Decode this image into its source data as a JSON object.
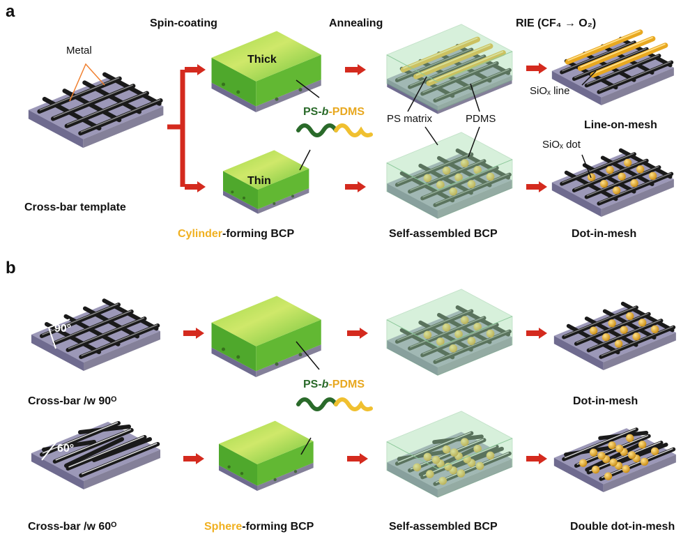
{
  "panel_a": {
    "label": "a",
    "steps": [
      "Spin-coating",
      "Annealing",
      "RIE (CF₄ → O₂)"
    ],
    "annotations": {
      "metal": "Metal",
      "thick": "Thick",
      "thin": "Thin",
      "polymer": [
        "PS-",
        "b",
        "-PDMS"
      ],
      "ps_matrix": "PS matrix",
      "pdms": "PDMS",
      "siox_line": "SiOₓ line",
      "siox_dot": "SiOₓ dot"
    },
    "captions": {
      "template": "Cross-bar template",
      "bcp": [
        "Cylinder",
        "-forming BCP"
      ],
      "self_assembled": "Self-assembled BCP",
      "line_on_mesh": "Line-on-mesh",
      "dot_in_mesh": "Dot-in-mesh"
    }
  },
  "panel_b": {
    "label": "b",
    "annotations": {
      "angle_90": "90°",
      "angle_60": "60°",
      "polymer": [
        "PS-",
        "b",
        "-PDMS"
      ]
    },
    "captions": {
      "template_90": "Cross-bar /w 90ᴼ",
      "template_60": "Cross-bar /w 60ᴼ",
      "bcp": [
        "Sphere",
        "-forming BCP"
      ],
      "self_assembled": "Self-assembled BCP",
      "dot_in_mesh": "Dot-in-mesh",
      "double_dot": "Double dot-in-mesh"
    }
  }
}
